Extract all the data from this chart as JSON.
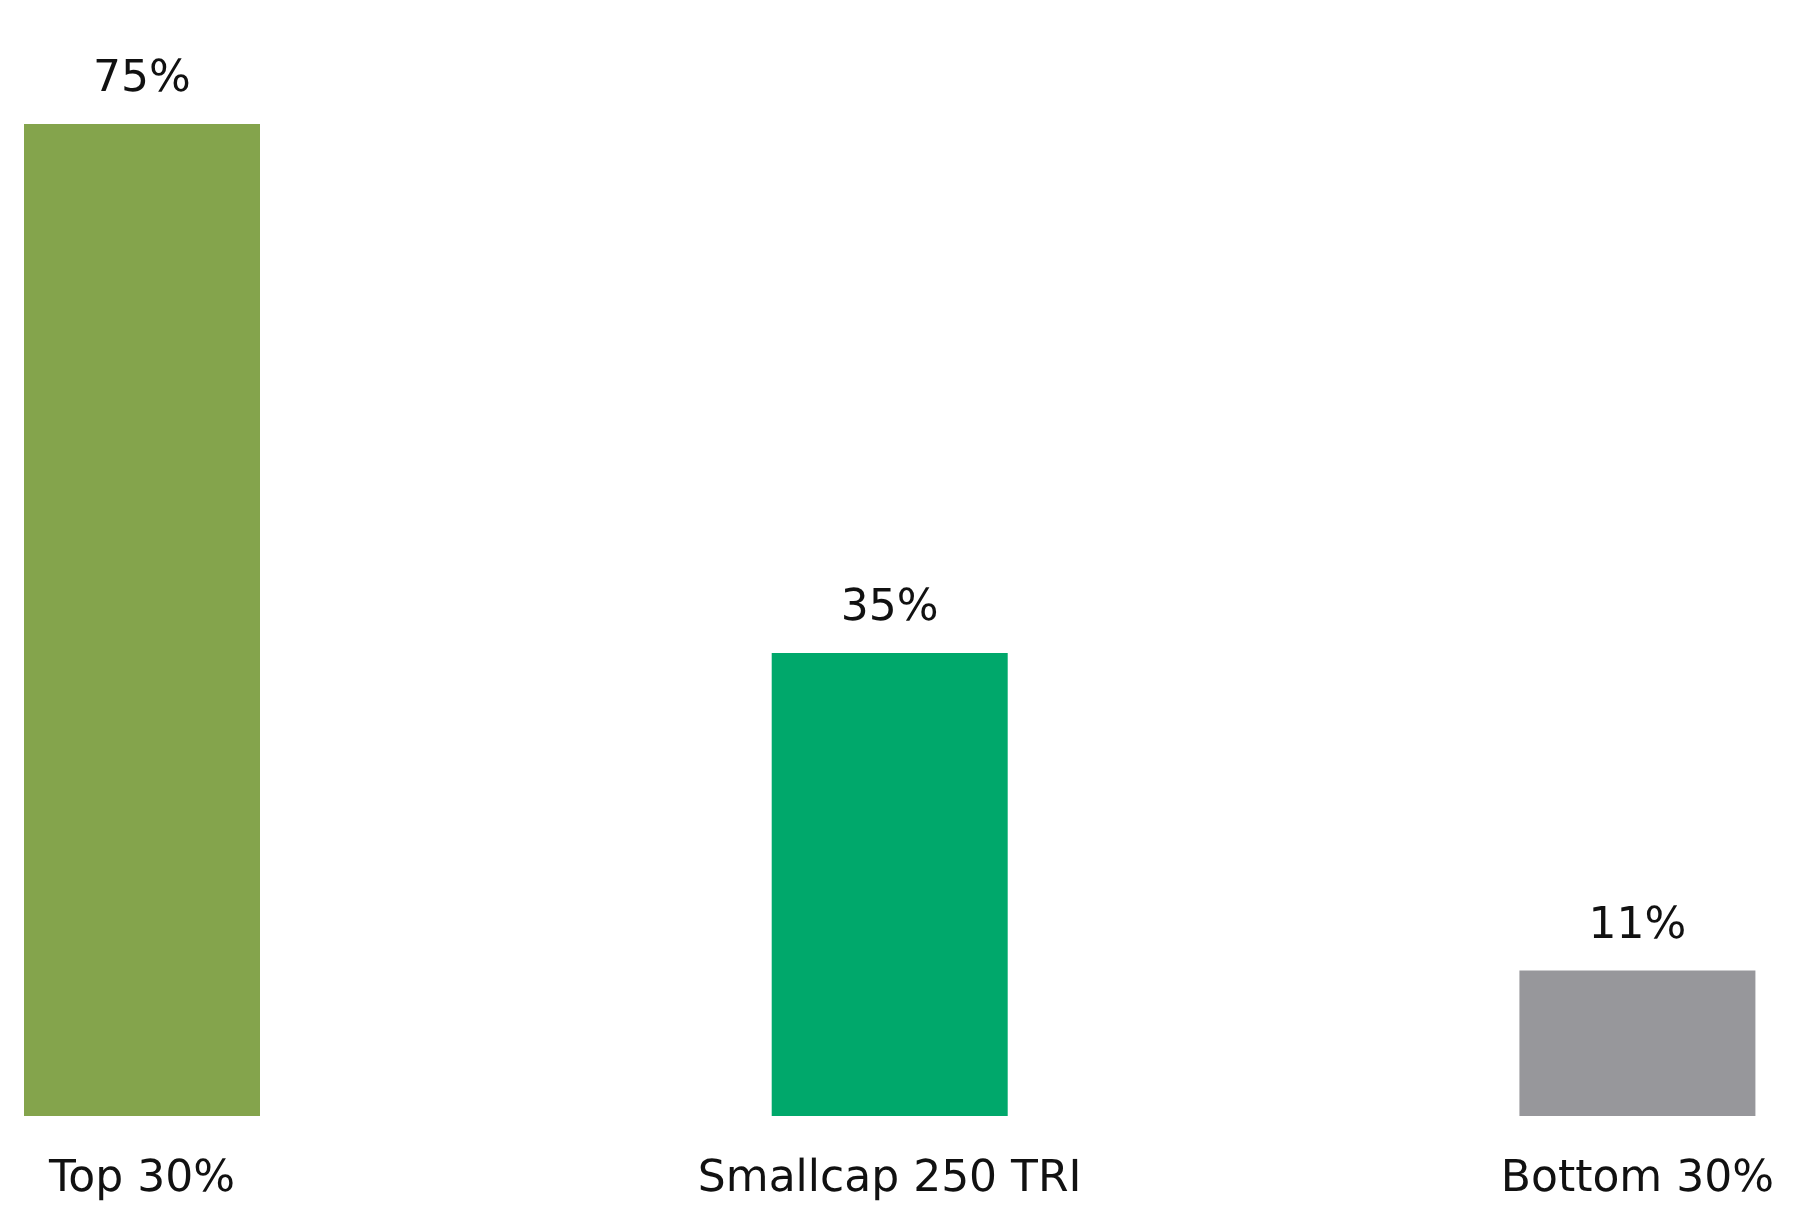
{
  "chart_data": {
    "type": "bar",
    "categories": [
      "Top 30%",
      "Smallcap 250 TRI",
      "Bottom 30%"
    ],
    "values": [
      75,
      35,
      11
    ],
    "colors": [
      "#84a44c",
      "#00a86b",
      "#97979b"
    ],
    "value_labels": [
      "75%",
      "35%",
      "11%"
    ]
  }
}
